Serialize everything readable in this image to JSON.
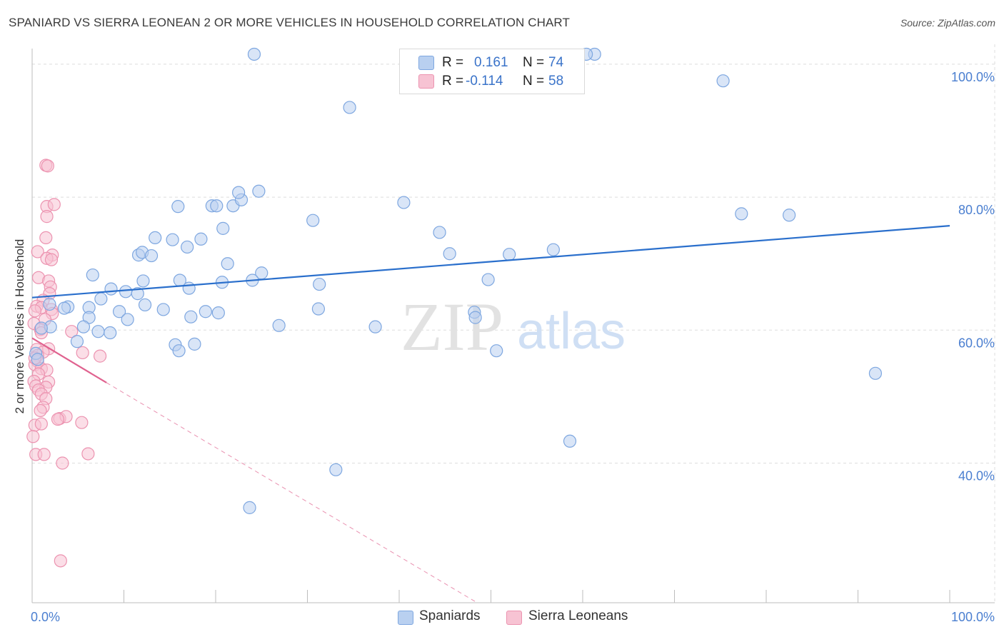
{
  "title": "SPANIARD VS SIERRA LEONEAN 2 OR MORE VEHICLES IN HOUSEHOLD CORRELATION CHART",
  "source": "Source: ZipAtlas.com",
  "watermark": {
    "zip": "ZIP",
    "atlas": "atlas"
  },
  "legend_top": [
    {
      "name": "Spaniards",
      "r_label": "R =",
      "r_value": "0.161",
      "n_label": "N =",
      "n_value": "74",
      "color": "#7ea7e0"
    },
    {
      "name": "Sierra Leoneans",
      "r_label": "R =",
      "r_value": "-0.114",
      "n_label": "N =",
      "n_value": "58",
      "color": "#f0a0b8"
    }
  ],
  "colors": {
    "blue_fill": "#b9d0f0",
    "blue_stroke": "#7ea7e0",
    "blue_line": "#2a6fcc",
    "pink_fill": "#f7c3d3",
    "pink_stroke": "#ec93b0",
    "pink_line": "#e0628f",
    "tick_label": "#4b7fd0",
    "grid": "#dddddd"
  },
  "chart_data": {
    "type": "scatter",
    "title": "SPANIARD VS SIERRA LEONEAN 2 OR MORE VEHICLES IN HOUSEHOLD CORRELATION CHART",
    "xlabel": "",
    "ylabel": "2 or more Vehicles in Household",
    "xlim": [
      0,
      100
    ],
    "ylim": [
      19,
      103
    ],
    "x_tick_labels": [
      {
        "value": 0,
        "label": "0.0%"
      },
      {
        "value": 100,
        "label": "100.0%"
      }
    ],
    "y_tick_labels": [
      {
        "value": 100,
        "label": "100.0%"
      },
      {
        "value": 80,
        "label": "80.0%"
      },
      {
        "value": 60,
        "label": "60.0%"
      },
      {
        "value": 40,
        "label": "40.0%"
      }
    ],
    "series": [
      {
        "name": "Spaniards",
        "color": "#7ea7e0",
        "points": [
          [
            24.2,
            101.5
          ],
          [
            61.3,
            101.5
          ],
          [
            60.4,
            101.5
          ],
          [
            75.3,
            97.5
          ],
          [
            34.6,
            93.5
          ],
          [
            15.9,
            78.6
          ],
          [
            19.6,
            78.7
          ],
          [
            20.1,
            78.7
          ],
          [
            21.9,
            78.7
          ],
          [
            22.8,
            79.6
          ],
          [
            22.5,
            80.7
          ],
          [
            24.7,
            80.9
          ],
          [
            40.5,
            79.2
          ],
          [
            77.3,
            77.5
          ],
          [
            82.5,
            77.3
          ],
          [
            30.6,
            76.5
          ],
          [
            20.8,
            75.3
          ],
          [
            44.4,
            74.7
          ],
          [
            13.4,
            73.9
          ],
          [
            15.3,
            73.6
          ],
          [
            18.4,
            73.7
          ],
          [
            16.9,
            72.5
          ],
          [
            11.6,
            71.3
          ],
          [
            12.0,
            71.7
          ],
          [
            13.0,
            71.2
          ],
          [
            45.5,
            71.5
          ],
          [
            52.0,
            71.4
          ],
          [
            56.8,
            72.1
          ],
          [
            21.3,
            70.0
          ],
          [
            25.0,
            68.6
          ],
          [
            6.6,
            68.3
          ],
          [
            12.1,
            67.4
          ],
          [
            16.1,
            67.5
          ],
          [
            17.1,
            66.3
          ],
          [
            20.7,
            67.2
          ],
          [
            24.0,
            67.5
          ],
          [
            31.3,
            66.9
          ],
          [
            49.7,
            67.6
          ],
          [
            8.6,
            66.2
          ],
          [
            10.2,
            65.8
          ],
          [
            11.5,
            65.5
          ],
          [
            7.5,
            64.7
          ],
          [
            12.3,
            63.8
          ],
          [
            14.3,
            63.1
          ],
          [
            6.2,
            63.4
          ],
          [
            3.9,
            63.5
          ],
          [
            1.9,
            63.9
          ],
          [
            3.5,
            63.3
          ],
          [
            9.5,
            62.8
          ],
          [
            20.3,
            62.6
          ],
          [
            17.3,
            62.0
          ],
          [
            18.9,
            62.8
          ],
          [
            31.2,
            63.2
          ],
          [
            48.2,
            62.7
          ],
          [
            48.3,
            61.9
          ],
          [
            10.4,
            61.6
          ],
          [
            6.2,
            61.9
          ],
          [
            2.0,
            60.5
          ],
          [
            5.6,
            60.5
          ],
          [
            7.2,
            59.8
          ],
          [
            8.5,
            59.6
          ],
          [
            1.0,
            60.3
          ],
          [
            26.9,
            60.7
          ],
          [
            37.4,
            60.5
          ],
          [
            4.9,
            58.3
          ],
          [
            15.6,
            57.8
          ],
          [
            17.7,
            57.9
          ],
          [
            16.0,
            56.9
          ],
          [
            50.6,
            56.9
          ],
          [
            0.4,
            56.5
          ],
          [
            0.6,
            55.6
          ],
          [
            91.9,
            53.5
          ],
          [
            58.6,
            43.3
          ],
          [
            33.1,
            39.0
          ],
          [
            23.7,
            33.3
          ]
        ]
      },
      {
        "name": "Sierra Leoneans",
        "color": "#f0a0b8",
        "points": [
          [
            1.5,
            84.8
          ],
          [
            1.7,
            84.7
          ],
          [
            1.6,
            78.6
          ],
          [
            2.4,
            78.9
          ],
          [
            1.6,
            77.1
          ],
          [
            1.5,
            73.9
          ],
          [
            0.6,
            71.8
          ],
          [
            2.2,
            71.3
          ],
          [
            1.6,
            70.8
          ],
          [
            2.1,
            70.6
          ],
          [
            0.7,
            67.9
          ],
          [
            1.8,
            67.4
          ],
          [
            2.0,
            66.5
          ],
          [
            1.9,
            65.5
          ],
          [
            1.2,
            64.5
          ],
          [
            0.5,
            63.6
          ],
          [
            1.0,
            63.4
          ],
          [
            2.1,
            63.1
          ],
          [
            0.3,
            62.9
          ],
          [
            2.2,
            62.5
          ],
          [
            1.4,
            61.6
          ],
          [
            0.2,
            61.0
          ],
          [
            0.9,
            60.1
          ],
          [
            1.0,
            59.6
          ],
          [
            4.3,
            59.8
          ],
          [
            1.8,
            57.2
          ],
          [
            0.5,
            57.1
          ],
          [
            1.2,
            56.7
          ],
          [
            0.6,
            56.2
          ],
          [
            5.5,
            56.6
          ],
          [
            7.4,
            56.1
          ],
          [
            0.6,
            55.3
          ],
          [
            0.3,
            54.8
          ],
          [
            1.0,
            54.2
          ],
          [
            1.6,
            54.0
          ],
          [
            0.7,
            53.4
          ],
          [
            0.2,
            52.3
          ],
          [
            1.8,
            52.2
          ],
          [
            0.4,
            51.6
          ],
          [
            1.5,
            51.4
          ],
          [
            0.7,
            51.0
          ],
          [
            1.0,
            50.4
          ],
          [
            1.5,
            49.7
          ],
          [
            1.2,
            48.4
          ],
          [
            0.9,
            47.9
          ],
          [
            3.0,
            46.7
          ],
          [
            3.7,
            47.0
          ],
          [
            2.8,
            46.6
          ],
          [
            5.4,
            46.1
          ],
          [
            0.3,
            45.7
          ],
          [
            1.0,
            45.9
          ],
          [
            0.1,
            44.0
          ],
          [
            0.4,
            41.3
          ],
          [
            1.3,
            41.3
          ],
          [
            6.1,
            41.4
          ],
          [
            3.3,
            40.0
          ],
          [
            3.1,
            25.3
          ],
          [
            0.3,
            55.8
          ]
        ]
      }
    ],
    "trendlines": [
      {
        "series": "Spaniards",
        "x": [
          0,
          100
        ],
        "y": [
          64.9,
          75.7
        ],
        "style": "solid"
      },
      {
        "series": "Sierra Leoneans",
        "x": [
          0,
          8.1
        ],
        "y": [
          58.8,
          52.1
        ],
        "style": "solid"
      },
      {
        "series": "Sierra Leoneans",
        "x": [
          8.1,
          48.5
        ],
        "y": [
          52.1,
          19.0
        ],
        "style": "dashed"
      }
    ],
    "grid": true,
    "legend_position": "top-center"
  }
}
